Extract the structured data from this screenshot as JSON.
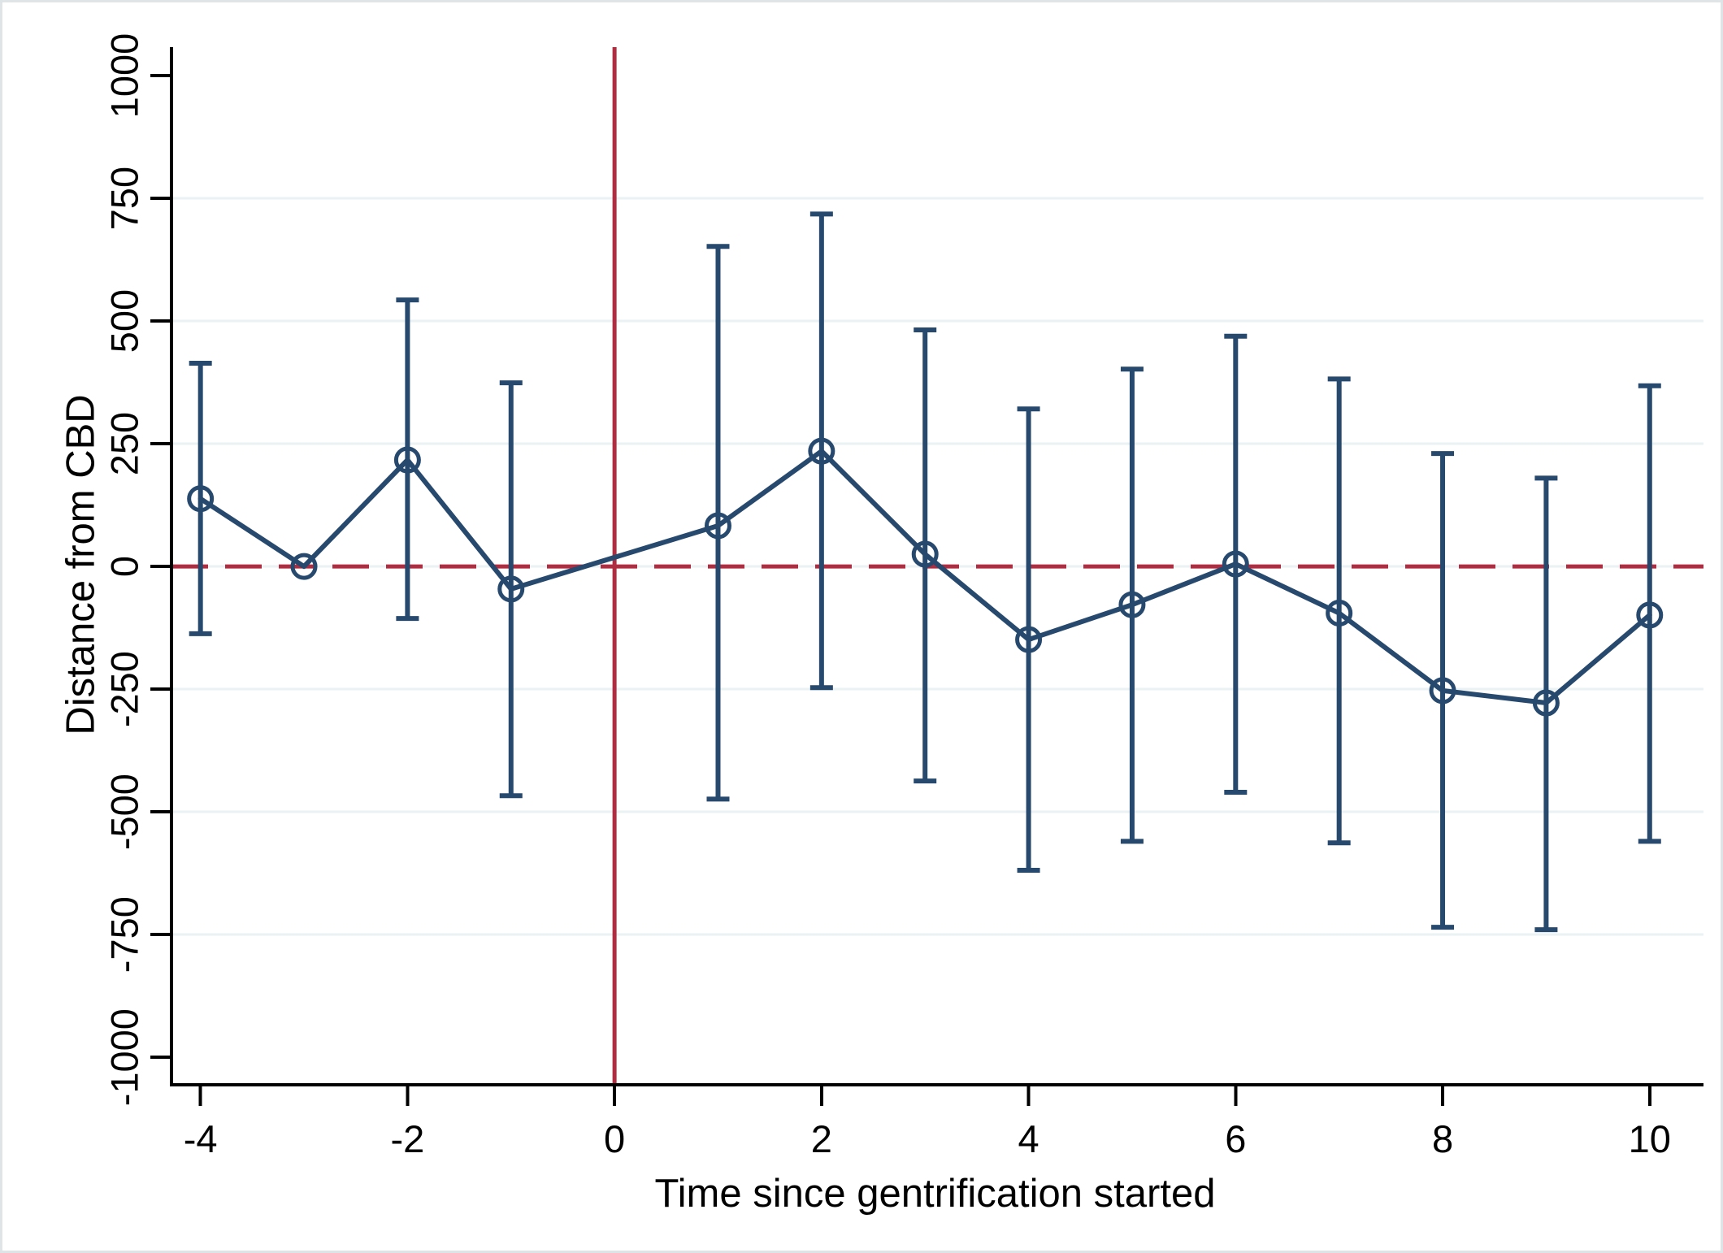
{
  "figure": {
    "title": "",
    "xlabel": "Time since gentrification started",
    "ylabel": "Distance from CBD"
  },
  "colors": {
    "estimate_navy": "#27496d",
    "reference_red": "#b02c40",
    "gridline": "#eaf2f3",
    "axis_black": "#000000",
    "background": "#ffffff",
    "frame_border": "#dfe4e6"
  },
  "chart_data": {
    "type": "line",
    "title": "",
    "xlabel": "Time since gentrification started",
    "ylabel": "Distance from CBD",
    "x_ticks": [
      -4,
      -2,
      0,
      2,
      4,
      6,
      8,
      10
    ],
    "y_ticks": [
      1000,
      750,
      500,
      250,
      0,
      -250,
      -500,
      -750,
      -1000
    ],
    "gridline_ticks": [
      750,
      500,
      250,
      0,
      -250,
      -500,
      -750
    ],
    "xlim": [
      -4.28,
      10.52
    ],
    "ylim": [
      -1056,
      1058
    ],
    "grid": "horizontal",
    "legend": "none",
    "marker": "open-circle",
    "reference_lines": [
      {
        "orientation": "horizontal",
        "value": 0,
        "style": "dashed"
      },
      {
        "orientation": "vertical",
        "value": 0,
        "style": "solid"
      }
    ],
    "series": [
      {
        "name": "Point estimate with 95% confidence interval",
        "points": [
          {
            "x": -4,
            "y": 138,
            "ci_low": -137,
            "ci_high": 414
          },
          {
            "x": -3,
            "y": 0,
            "ci_low": null,
            "ci_high": null
          },
          {
            "x": -2,
            "y": 217,
            "ci_low": -106,
            "ci_high": 543
          },
          {
            "x": -1,
            "y": -46,
            "ci_low": -467,
            "ci_high": 374
          },
          {
            "x": 1,
            "y": 83,
            "ci_low": -474,
            "ci_high": 652
          },
          {
            "x": 2,
            "y": 235,
            "ci_low": -247,
            "ci_high": 718
          },
          {
            "x": 3,
            "y": 25,
            "ci_low": -437,
            "ci_high": 482
          },
          {
            "x": 4,
            "y": -149,
            "ci_low": -619,
            "ci_high": 321
          },
          {
            "x": 5,
            "y": -78,
            "ci_low": -560,
            "ci_high": 402
          },
          {
            "x": 6,
            "y": 5,
            "ci_low": -460,
            "ci_high": 469
          },
          {
            "x": 7,
            "y": -95,
            "ci_low": -563,
            "ci_high": 382
          },
          {
            "x": 8,
            "y": -253,
            "ci_low": -735,
            "ci_high": 230
          },
          {
            "x": 9,
            "y": -278,
            "ci_low": -740,
            "ci_high": 180
          },
          {
            "x": 10,
            "y": -99,
            "ci_low": -560,
            "ci_high": 368
          }
        ]
      }
    ]
  }
}
